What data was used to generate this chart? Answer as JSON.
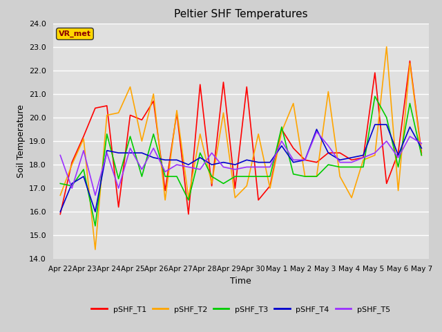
{
  "title": "Peltier SHF Temperatures",
  "xlabel": "Time",
  "ylabel": "Soil Temperature",
  "ylim": [
    14.0,
    24.0
  ],
  "yticks": [
    14.0,
    15.0,
    16.0,
    17.0,
    18.0,
    19.0,
    20.0,
    21.0,
    22.0,
    23.0,
    24.0
  ],
  "bg_color": "#e0e0e0",
  "fig_bg_color": "#d0d0d0",
  "annotation_text": "VR_met",
  "annotation_color": "#8B0000",
  "annotation_bg": "#FFD700",
  "series_colors": {
    "pSHF_T1": "#FF0000",
    "pSHF_T2": "#FFA500",
    "pSHF_T3": "#00CC00",
    "pSHF_T4": "#0000CC",
    "pSHF_T5": "#9B30FF"
  },
  "x_labels": [
    "Apr 22",
    "Apr 23",
    "Apr 24",
    "Apr 25",
    "Apr 26",
    "Apr 27",
    "Apr 28",
    "Apr 29",
    "Apr 30",
    "May 1",
    "May 2",
    "May 3",
    "May 4",
    "May 5",
    "May 6",
    "May 7"
  ],
  "pSHF_T1": [
    15.9,
    18.1,
    19.2,
    20.4,
    20.5,
    16.2,
    20.1,
    19.9,
    20.7,
    16.9,
    20.2,
    15.9,
    21.4,
    17.1,
    21.5,
    17.0,
    21.3,
    16.5,
    17.1,
    19.5,
    18.7,
    18.2,
    18.1,
    18.5,
    18.5,
    18.2,
    18.3,
    21.9,
    17.2,
    18.5,
    22.4,
    18.5
  ],
  "pSHF_T2": [
    16.7,
    18.0,
    19.1,
    14.4,
    20.1,
    20.2,
    21.3,
    19.0,
    21.0,
    16.5,
    20.3,
    16.6,
    19.3,
    17.2,
    20.2,
    16.6,
    17.1,
    19.3,
    17.0,
    19.4,
    20.6,
    17.5,
    17.5,
    21.1,
    17.5,
    16.6,
    18.2,
    18.4,
    23.0,
    16.9,
    22.3,
    18.4
  ],
  "pSHF_T3": [
    17.2,
    17.1,
    17.8,
    15.4,
    19.3,
    17.4,
    19.2,
    17.5,
    19.3,
    17.5,
    17.5,
    16.5,
    18.5,
    17.5,
    17.2,
    17.5,
    17.5,
    17.5,
    17.5,
    19.6,
    17.6,
    17.5,
    17.5,
    18.0,
    17.9,
    17.9,
    17.9,
    20.9,
    20.0,
    17.9,
    20.6,
    18.4
  ],
  "pSHF_T4": [
    16.0,
    17.2,
    17.5,
    16.0,
    18.6,
    18.5,
    18.5,
    18.5,
    18.3,
    18.2,
    18.2,
    18.0,
    18.3,
    18.0,
    18.1,
    18.0,
    18.2,
    18.1,
    18.1,
    18.8,
    18.1,
    18.2,
    19.5,
    18.5,
    18.2,
    18.3,
    18.4,
    19.7,
    19.7,
    18.4,
    19.6,
    18.7
  ],
  "pSHF_T5": [
    18.4,
    17.0,
    18.6,
    16.7,
    18.5,
    17.0,
    18.7,
    17.8,
    18.7,
    17.7,
    18.0,
    17.9,
    17.8,
    18.5,
    17.9,
    17.8,
    17.9,
    17.9,
    17.9,
    19.0,
    18.2,
    18.2,
    19.4,
    18.8,
    18.1,
    18.1,
    18.3,
    18.5,
    19.0,
    18.3,
    19.2,
    18.9
  ]
}
